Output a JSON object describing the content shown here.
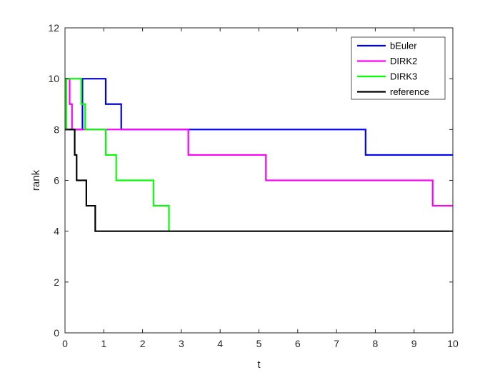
{
  "chart_data": {
    "type": "line",
    "step": true,
    "xlabel": "t",
    "ylabel": "rank",
    "xlim": [
      0,
      10
    ],
    "ylim": [
      0,
      12
    ],
    "xticks": [
      0,
      1,
      2,
      3,
      4,
      5,
      6,
      7,
      8,
      9,
      10
    ],
    "yticks": [
      0,
      2,
      4,
      6,
      8,
      10,
      12
    ],
    "grid": false,
    "legend_position": "top-right",
    "series": [
      {
        "name": "bEuler",
        "color": "#0000ff",
        "points": [
          [
            0,
            8
          ],
          [
            0.45,
            8
          ],
          [
            0.45,
            10
          ],
          [
            1.05,
            10
          ],
          [
            1.05,
            9
          ],
          [
            1.45,
            9
          ],
          [
            1.45,
            8
          ],
          [
            7.75,
            8
          ],
          [
            7.75,
            7
          ],
          [
            10,
            7
          ]
        ]
      },
      {
        "name": "DIRK2",
        "color": "#ff00ff",
        "points": [
          [
            0,
            8
          ],
          [
            0.03,
            8
          ],
          [
            0.03,
            10
          ],
          [
            0.12,
            10
          ],
          [
            0.12,
            9
          ],
          [
            0.18,
            9
          ],
          [
            0.18,
            8
          ],
          [
            3.18,
            8
          ],
          [
            3.18,
            7
          ],
          [
            5.18,
            7
          ],
          [
            5.18,
            6
          ],
          [
            9.48,
            6
          ],
          [
            9.48,
            5
          ],
          [
            10,
            5
          ]
        ]
      },
      {
        "name": "DIRK3",
        "color": "#00ff00",
        "points": [
          [
            0,
            8
          ],
          [
            0.03,
            8
          ],
          [
            0.03,
            10
          ],
          [
            0.42,
            10
          ],
          [
            0.42,
            9
          ],
          [
            0.52,
            9
          ],
          [
            0.52,
            8
          ],
          [
            1.05,
            8
          ],
          [
            1.05,
            7
          ],
          [
            1.32,
            7
          ],
          [
            1.32,
            6
          ],
          [
            2.28,
            6
          ],
          [
            2.28,
            5
          ],
          [
            2.68,
            5
          ],
          [
            2.68,
            4
          ]
        ]
      },
      {
        "name": "reference",
        "color": "#000000",
        "points": [
          [
            0,
            8
          ],
          [
            0.25,
            8
          ],
          [
            0.25,
            7
          ],
          [
            0.3,
            7
          ],
          [
            0.3,
            6
          ],
          [
            0.55,
            6
          ],
          [
            0.55,
            5
          ],
          [
            0.78,
            5
          ],
          [
            0.78,
            4
          ],
          [
            10,
            4
          ]
        ]
      }
    ]
  }
}
